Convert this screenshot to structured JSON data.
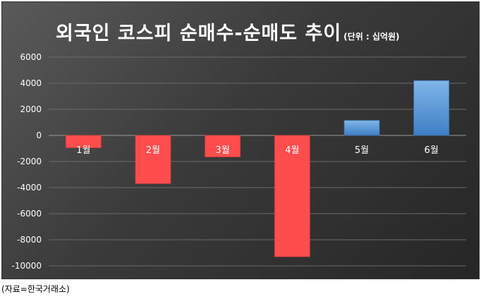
{
  "chart_data": {
    "type": "bar",
    "title": "외국인 코스피 순매수-순매도 추이",
    "subtitle": "(단위 : 십억원)",
    "categories": [
      "1월",
      "2월",
      "3월",
      "4월",
      "5월",
      "6월"
    ],
    "values": [
      -950,
      -3700,
      -1650,
      -9300,
      1150,
      4200
    ],
    "ylim": [
      -10000,
      6000
    ],
    "yticks": [
      6000,
      4000,
      2000,
      0,
      -2000,
      -4000,
      -6000,
      -8000,
      -10000
    ],
    "grid": true,
    "xlabel": "",
    "ylabel": "",
    "colors": {
      "negative": "#ff4d4d",
      "positive_top": "#7fb6e8",
      "positive_bottom": "#3f7fc6",
      "grid": "#6a6a6a",
      "axis_text": "#ffffff"
    }
  },
  "footer": {
    "source": "(자료=한국거래소)"
  }
}
